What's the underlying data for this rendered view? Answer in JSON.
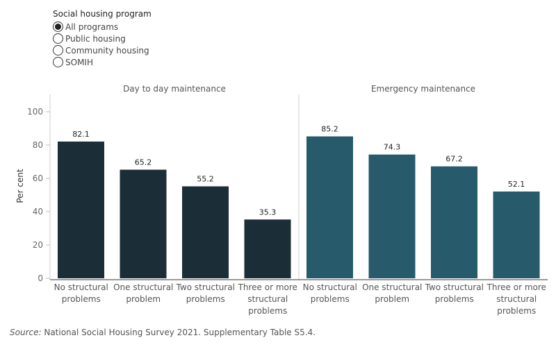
{
  "filter": {
    "title": "Social housing program",
    "options": [
      {
        "label": "All programs",
        "selected": true
      },
      {
        "label": "Public housing",
        "selected": false
      },
      {
        "label": "Community housing",
        "selected": false
      },
      {
        "label": "SOMIH",
        "selected": false
      }
    ]
  },
  "source": {
    "prefix": "Source:",
    "text": " National Social Housing Survey 2021. Supplementary Table S5.4."
  },
  "chart_data": {
    "type": "bar",
    "ylabel": "Per cent",
    "ylim": [
      0,
      100
    ],
    "yticks": [
      0,
      20,
      40,
      60,
      80,
      100
    ],
    "categories": [
      "No structural problems",
      "One structural problem",
      "Two structural problems",
      "Three or more structural problems"
    ],
    "category_lines": [
      [
        "No structural",
        "problems"
      ],
      [
        "One structural",
        "problem"
      ],
      [
        "Two structural",
        "problems"
      ],
      [
        "Three or more",
        "structural",
        "problems"
      ]
    ],
    "panels": [
      {
        "name": "Day to day maintenance",
        "color": "#1b2d36",
        "values": [
          82.1,
          65.2,
          55.2,
          35.3
        ]
      },
      {
        "name": "Emergency maintenance",
        "color": "#275a6b",
        "values": [
          85.2,
          74.3,
          67.2,
          52.1
        ]
      }
    ]
  }
}
